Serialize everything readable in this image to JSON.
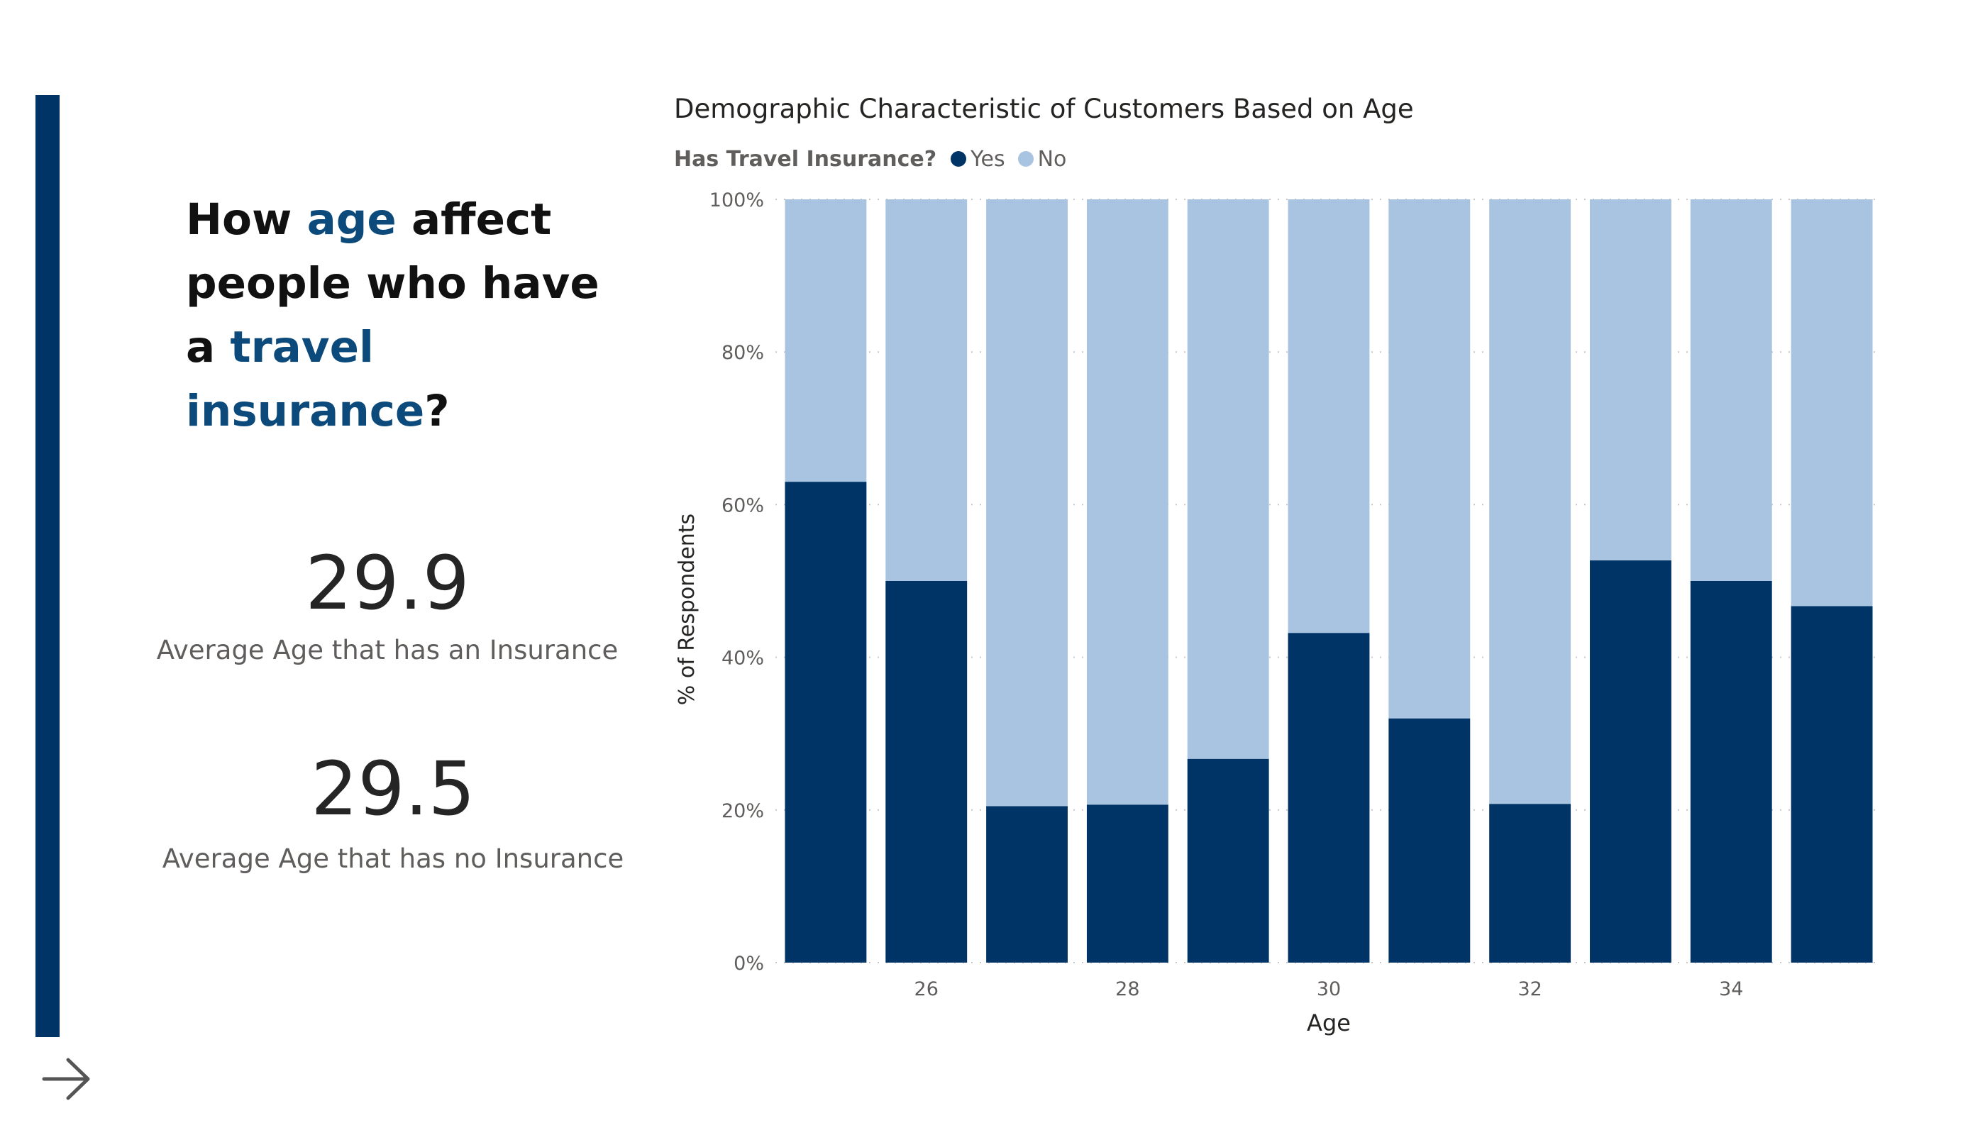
{
  "heading": {
    "part1": "How ",
    "highlight1": "age",
    "part2": " affect people who have a ",
    "highlight2": "travel insurance",
    "part3": "?"
  },
  "kpis": [
    {
      "value": "29.9",
      "label": "Average Age that has an Insurance"
    },
    {
      "value": "29.5",
      "label": "Average Age that has no Insurance"
    }
  ],
  "colors": {
    "accent": "#003366",
    "yes": "#003366",
    "no": "#a9c4e0",
    "highlight": "#0b4a7a"
  },
  "icons": {
    "arrow": "arrow-right-icon"
  },
  "chart_data": {
    "type": "bar",
    "stacked": true,
    "percent": true,
    "title": "Demographic Characteristic of Customers Based on Age",
    "legend_title": "Has Travel Insurance?",
    "legend_position": "top-left",
    "xlabel": "Age",
    "ylabel": "% of Respondents",
    "categories": [
      25,
      26,
      27,
      28,
      29,
      30,
      31,
      32,
      33,
      34,
      35
    ],
    "x_tick_labels": [
      "26",
      "28",
      "30",
      "32",
      "34"
    ],
    "y_tick_labels": [
      "0%",
      "20%",
      "40%",
      "60%",
      "80%",
      "100%"
    ],
    "ylim": [
      0,
      100
    ],
    "grid": true,
    "series": [
      {
        "name": "Yes",
        "color": "#003366",
        "values": [
          63,
          50,
          20.5,
          20.7,
          26.7,
          43.2,
          32,
          20.8,
          52.7,
          50,
          46.7
        ]
      },
      {
        "name": "No",
        "color": "#a9c4e0",
        "values": [
          37,
          50,
          79.5,
          79.3,
          73.3,
          56.8,
          68,
          79.2,
          47.3,
          50,
          53.3
        ]
      }
    ]
  }
}
